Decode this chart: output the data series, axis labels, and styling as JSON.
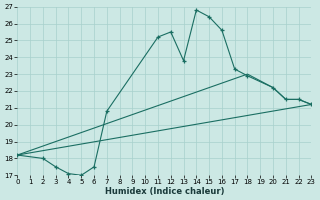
{
  "xlabel": "Humidex (Indice chaleur)",
  "bg_color": "#cce8e4",
  "grid_color": "#a8d0cc",
  "line_color": "#1a6e62",
  "xlim": [
    0,
    23
  ],
  "ylim": [
    17,
    27
  ],
  "xticks": [
    0,
    1,
    2,
    3,
    4,
    5,
    6,
    7,
    8,
    9,
    10,
    11,
    12,
    13,
    14,
    15,
    16,
    17,
    18,
    19,
    20,
    21,
    22,
    23
  ],
  "yticks": [
    17,
    18,
    19,
    20,
    21,
    22,
    23,
    24,
    25,
    26,
    27
  ],
  "line1_x": [
    0,
    2,
    3,
    4,
    5,
    6,
    7,
    11,
    12,
    13,
    14,
    15,
    16,
    17,
    18,
    20,
    21,
    22,
    23
  ],
  "line1_y": [
    18.2,
    18.0,
    17.5,
    17.1,
    17.0,
    17.5,
    20.8,
    25.2,
    25.5,
    23.8,
    26.8,
    26.4,
    25.6,
    23.3,
    22.9,
    22.2,
    21.5,
    21.5,
    21.2
  ],
  "line2_x": [
    0,
    23
  ],
  "line2_y": [
    18.2,
    21.2
  ],
  "line3_x": [
    0,
    18,
    20,
    21,
    22,
    23
  ],
  "line3_y": [
    18.2,
    23.0,
    22.2,
    21.5,
    21.5,
    21.2
  ]
}
